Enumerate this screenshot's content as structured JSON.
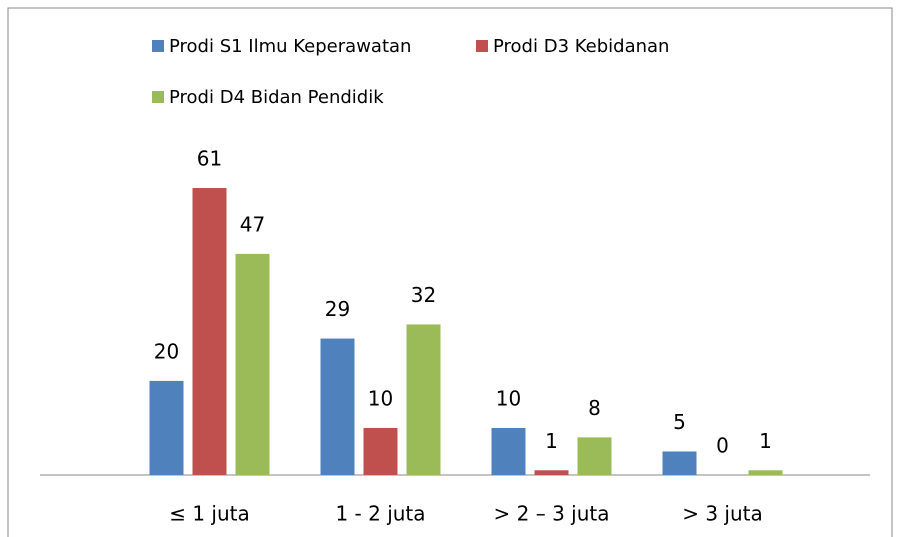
{
  "chart_data": {
    "type": "bar",
    "categories": [
      "≤ 1 juta",
      "1 - 2 juta",
      "> 2 – 3 juta",
      "> 3 juta"
    ],
    "series": [
      {
        "name": "Prodi S1 Ilmu Keperawatan",
        "color": "#4f81bd",
        "values": [
          20,
          29,
          10,
          5
        ]
      },
      {
        "name": "Prodi D3 Kebidanan",
        "color": "#c0504d",
        "values": [
          61,
          10,
          1,
          0
        ]
      },
      {
        "name": "Prodi D4 Bidan Pendidik",
        "color": "#9bbb59",
        "values": [
          47,
          32,
          8,
          1
        ]
      }
    ],
    "legend": "top"
  }
}
